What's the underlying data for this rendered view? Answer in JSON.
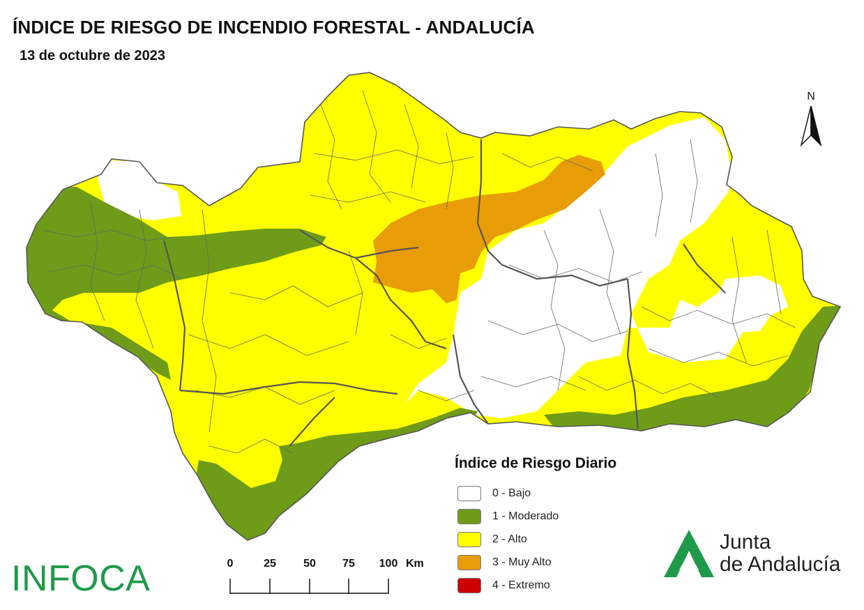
{
  "title": "ÍNDICE DE RIESGO DE INCENDIO FORESTAL - ANDALUCÍA",
  "date": "13 de octubre de 2023",
  "north_label": "N",
  "legend": {
    "title": "Índice de Riesgo Diario",
    "items": [
      {
        "label": "0 - Bajo",
        "color": "#ffffff"
      },
      {
        "label": "1 - Moderado",
        "color": "#6e9c19"
      },
      {
        "label": "2 - Alto",
        "color": "#ffff00"
      },
      {
        "label": "3 - Muy Alto",
        "color": "#e89d06"
      },
      {
        "label": "4 - Extremo",
        "color": "#cc0000"
      }
    ]
  },
  "scale_bar": {
    "ticks": [
      "0",
      "25",
      "50",
      "75",
      "100"
    ],
    "unit": "Km"
  },
  "logos": {
    "infoca": "INFOCA",
    "junta_line1": "Junta",
    "junta_line2": "de Andalucía"
  },
  "colors": {
    "brand_green": "#1f9a4a",
    "province_border": "#555555",
    "municipality_border": "#666666"
  }
}
